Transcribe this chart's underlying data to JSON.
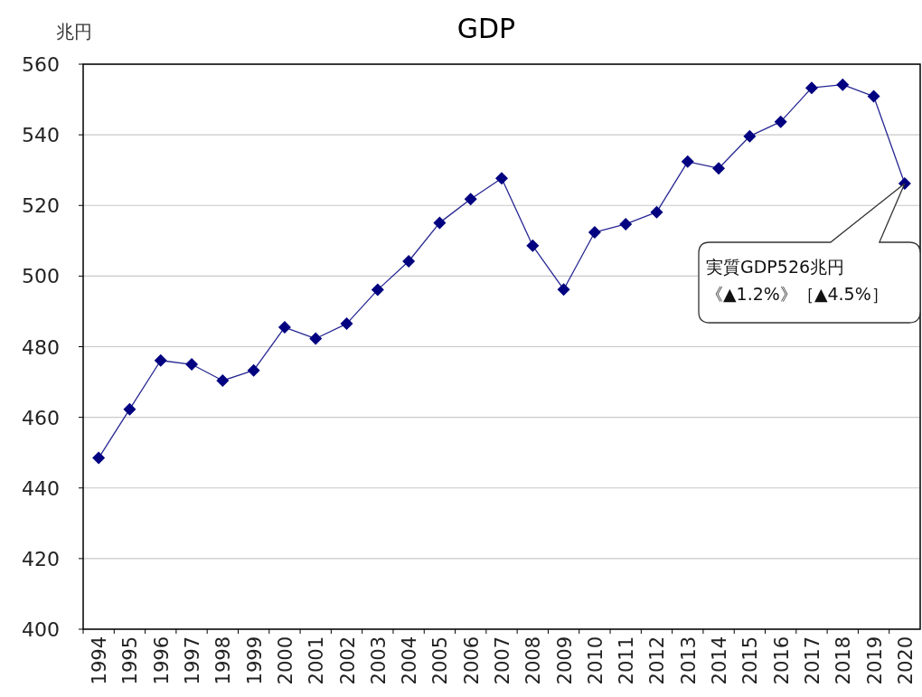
{
  "chart_data": {
    "type": "line",
    "title": "GDP",
    "ylabel": "兆円",
    "categories": [
      "1994",
      "1995",
      "1996",
      "1997",
      "1998",
      "1999",
      "2000",
      "2001",
      "2002",
      "2003",
      "2004",
      "2005",
      "2006",
      "2007",
      "2008",
      "2009",
      "2010",
      "2011",
      "2012",
      "2013",
      "2014",
      "2015",
      "2016",
      "2017",
      "2018",
      "2019",
      "2020"
    ],
    "series": [
      {
        "color": "#000080",
        "values": [
          448.5,
          462.3,
          476.1,
          475.0,
          470.4,
          473.3,
          485.5,
          482.3,
          486.5,
          496.1,
          504.2,
          515.1,
          521.8,
          527.7,
          508.6,
          496.2,
          512.4,
          514.7,
          518.1,
          532.4,
          530.5,
          539.6,
          543.7,
          553.3,
          554.2,
          550.9,
          526.2
        ]
      }
    ],
    "ylim": [
      400,
      560
    ],
    "yticks": [
      400,
      420,
      440,
      460,
      480,
      500,
      520,
      540,
      560
    ],
    "grid": "y",
    "marker": "diamond",
    "annotations": [
      "実質GDP526兆円",
      "《▲1.2%》［▲4.5%］"
    ]
  }
}
